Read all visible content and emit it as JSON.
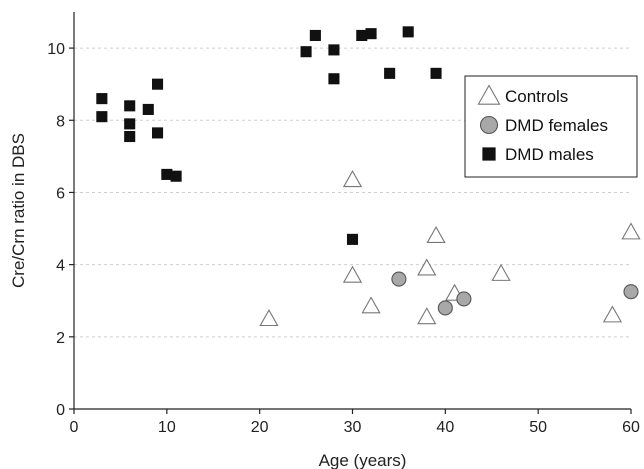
{
  "chart_data": {
    "type": "scatter",
    "title": "",
    "xlabel": "Age (years)",
    "ylabel": "Cre/Crn ratio in DBS",
    "xlim": [
      0,
      60
    ],
    "ylim": [
      0,
      11
    ],
    "xticks": [
      0,
      10,
      20,
      30,
      40,
      50,
      60
    ],
    "yticks": [
      0,
      2,
      4,
      6,
      8,
      10
    ],
    "grid": "horizontal dashed",
    "legend_position": "right",
    "series": [
      {
        "name": "Controls",
        "marker": "triangle",
        "color": "#ffffff",
        "stroke": "#777777",
        "points": [
          [
            21,
            2.5
          ],
          [
            30,
            6.35
          ],
          [
            30,
            3.7
          ],
          [
            32,
            2.85
          ],
          [
            38,
            3.9
          ],
          [
            38,
            2.55
          ],
          [
            39,
            4.8
          ],
          [
            41,
            3.2
          ],
          [
            46,
            3.75
          ],
          [
            58,
            2.6
          ],
          [
            60,
            4.9
          ]
        ]
      },
      {
        "name": "DMD females",
        "marker": "circle",
        "color": "#a8a8a8",
        "stroke": "#555555",
        "points": [
          [
            35,
            3.6
          ],
          [
            40,
            2.8
          ],
          [
            42,
            3.05
          ],
          [
            60,
            3.25
          ]
        ]
      },
      {
        "name": "DMD males",
        "marker": "square",
        "color": "#111111",
        "stroke": "#111111",
        "points": [
          [
            3,
            8.6
          ],
          [
            3,
            8.1
          ],
          [
            6,
            8.4
          ],
          [
            6,
            7.9
          ],
          [
            6,
            7.55
          ],
          [
            8,
            8.3
          ],
          [
            9,
            9.0
          ],
          [
            9,
            7.65
          ],
          [
            10,
            6.5
          ],
          [
            11,
            6.45
          ],
          [
            25,
            9.9
          ],
          [
            26,
            10.35
          ],
          [
            28,
            9.95
          ],
          [
            28,
            9.15
          ],
          [
            30,
            4.7
          ],
          [
            31,
            10.35
          ],
          [
            32,
            10.4
          ],
          [
            34,
            9.3
          ],
          [
            36,
            10.45
          ],
          [
            39,
            9.3
          ]
        ]
      }
    ]
  }
}
